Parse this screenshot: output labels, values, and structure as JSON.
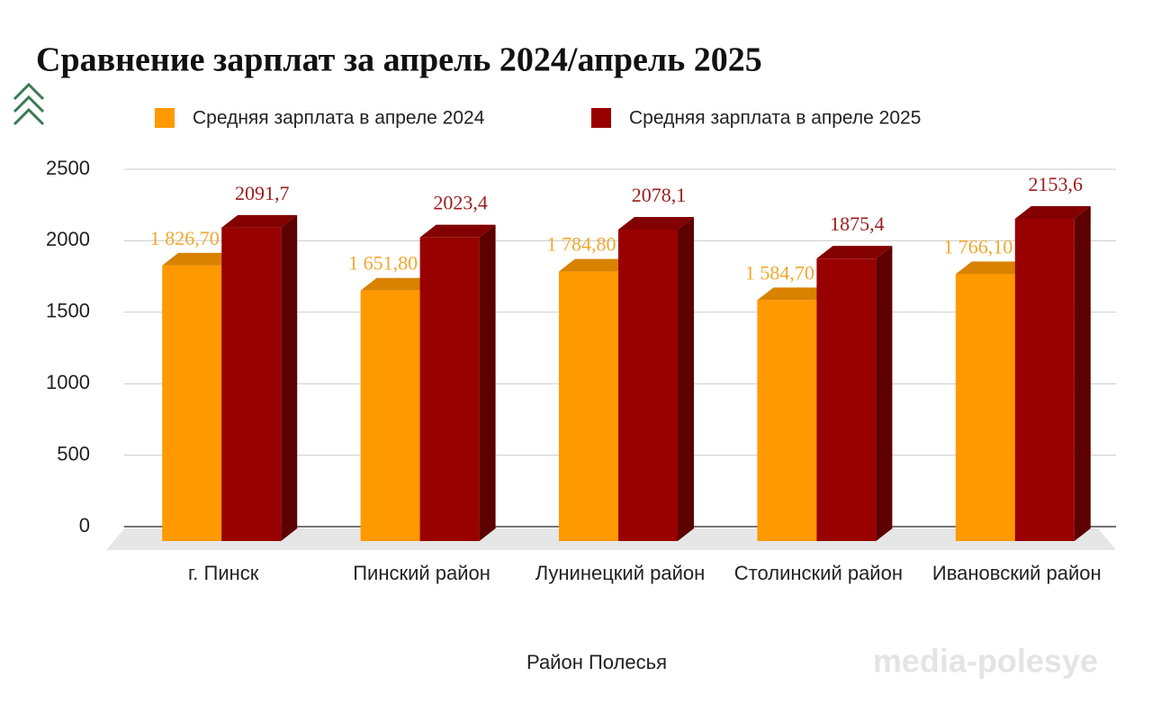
{
  "chart_data": {
    "type": "bar3d",
    "title": "Сравнение зарплат за апрель 2024/апрель 2025",
    "x_label": "Район Полесья",
    "watermark": "media-polesye",
    "categories": [
      "г. Пинск",
      "Пинский район",
      "Лунинецкий район",
      "Столинский район",
      "Ивановский район"
    ],
    "series": [
      {
        "name": "Средняя зарплата в апреле 2024",
        "color": "#ff9900",
        "values": [
          1826.7,
          1651.8,
          1784.8,
          1584.7,
          1766.1
        ],
        "value_labels": [
          "1 826,70",
          "1 651,80",
          "1 784,80",
          "1 584,70",
          "1 766,10"
        ]
      },
      {
        "name": "Средняя зарплата в апреле 2025",
        "color": "#990000",
        "values": [
          2091.7,
          2023.4,
          2078.1,
          1875.4,
          2153.6
        ],
        "value_labels": [
          "2091,7",
          "2023,4",
          "2078,1",
          "1875,4",
          "2153,6"
        ]
      }
    ],
    "ylim": [
      0,
      2500
    ],
    "yticks": [
      0,
      500,
      1000,
      1500,
      2000,
      2500
    ],
    "grid": true,
    "legend": "top"
  }
}
